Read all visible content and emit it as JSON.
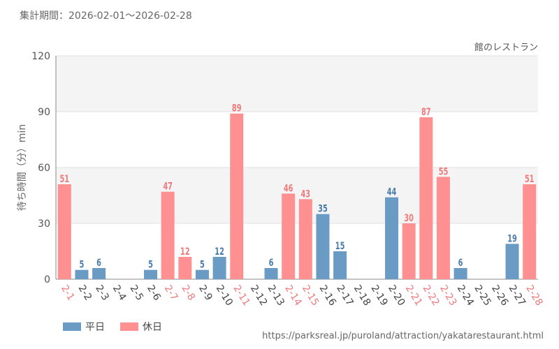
{
  "header": {
    "period": "集計期間：2026-02-01～2026-02-28"
  },
  "colors": {
    "weekday": "#6a9bc4",
    "holiday": "#ff9092",
    "weekday_label": "#4a7cab",
    "holiday_label": "#ef7a7c"
  },
  "legend": {
    "weekday": "平日",
    "holiday": "休日"
  },
  "source_url": "https://parksreal.jp/puroland/attraction/yakatarestaurant.html",
  "chart_data": {
    "type": "bar",
    "title": "館のレストラン",
    "xlabel": "",
    "ylabel": "待ち時間（分）min",
    "ylim": [
      0,
      120
    ],
    "yticks": [
      0,
      30,
      60,
      90,
      120
    ],
    "categories": [
      "2-1",
      "2-2",
      "2-3",
      "2-4",
      "2-5",
      "2-6",
      "2-7",
      "2-8",
      "2-9",
      "2-10",
      "2-11",
      "2-12",
      "2-13",
      "2-14",
      "2-15",
      "2-16",
      "2-17",
      "2-18",
      "2-19",
      "2-20",
      "2-21",
      "2-22",
      "2-23",
      "2-24",
      "2-25",
      "2-26",
      "2-27",
      "2-28"
    ],
    "values": [
      51,
      5,
      6,
      null,
      null,
      5,
      47,
      12,
      5,
      12,
      89,
      null,
      6,
      46,
      43,
      35,
      15,
      null,
      null,
      44,
      30,
      87,
      55,
      6,
      null,
      null,
      19,
      51
    ],
    "day_type": [
      "holiday",
      "weekday",
      "weekday",
      "weekday",
      "weekday",
      "weekday",
      "holiday",
      "holiday",
      "weekday",
      "weekday",
      "holiday",
      "weekday",
      "weekday",
      "holiday",
      "holiday",
      "weekday",
      "weekday",
      "weekday",
      "weekday",
      "weekday",
      "holiday",
      "holiday",
      "holiday",
      "weekday",
      "weekday",
      "weekday",
      "weekday",
      "holiday"
    ],
    "series": [
      {
        "name": "平日",
        "key": "weekday"
      },
      {
        "name": "休日",
        "key": "holiday"
      }
    ]
  }
}
